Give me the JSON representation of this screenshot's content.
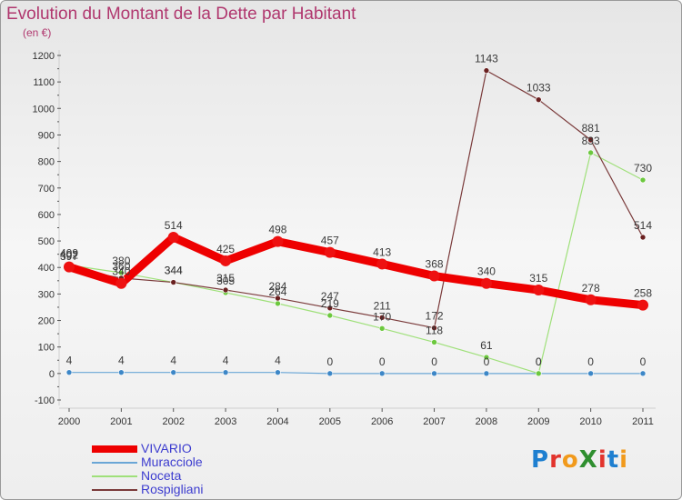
{
  "title": "Evolution du Montant de la Dette par Habitant",
  "subtitle": "(en €)",
  "brand": {
    "text": "ProXiti",
    "letters": [
      {
        "ch": "P",
        "color": "#1e7fd0"
      },
      {
        "ch": "r",
        "color": "#e2342d"
      },
      {
        "ch": "o",
        "color": "#f19a1c"
      },
      {
        "ch": "X",
        "color": "#2f8f2f"
      },
      {
        "ch": "i",
        "color": "#e2342d"
      },
      {
        "ch": "t",
        "color": "#1e7fd0"
      },
      {
        "ch": "i",
        "color": "#f19a1c"
      }
    ]
  },
  "chart_data": {
    "type": "line",
    "title": "Evolution du Montant de la Dette par Habitant",
    "subtitle": "(en €)",
    "x": [
      "2000",
      "2001",
      "2002",
      "2003",
      "2004",
      "2005",
      "2006",
      "2007",
      "2008",
      "2009",
      "2010",
      "2011"
    ],
    "ylim": [
      -100,
      1200
    ],
    "yticks": [
      -100,
      0,
      100,
      200,
      300,
      400,
      500,
      600,
      700,
      800,
      900,
      1000,
      1100,
      1200
    ],
    "grid": false,
    "legend_position": "bottom-left",
    "series": [
      {
        "name": "VIVARIO",
        "color": "#ee0000",
        "point_color": "#ee1111",
        "emphasis": true,
        "values": [
          402,
          340,
          514,
          425,
          498,
          457,
          413,
          368,
          340,
          315,
          278,
          258
        ]
      },
      {
        "name": "Muracciole",
        "color": "#6aa6d6",
        "point_color": "#3d87c7",
        "values": [
          4,
          4,
          4,
          4,
          4,
          0,
          0,
          0,
          0,
          0,
          0,
          0
        ]
      },
      {
        "name": "Noceta",
        "color": "#9fe07a",
        "point_color": "#6cc83e",
        "values": [
          409,
          380,
          344,
          305,
          264,
          219,
          170,
          118,
          61,
          0,
          833,
          730
        ]
      },
      {
        "name": "Rospigliani",
        "color": "#7a3a3a",
        "point_color": "#6a2020",
        "values": [
          397,
          360,
          344,
          315,
          284,
          247,
          211,
          172,
          1143,
          1033,
          881,
          514
        ]
      }
    ]
  }
}
